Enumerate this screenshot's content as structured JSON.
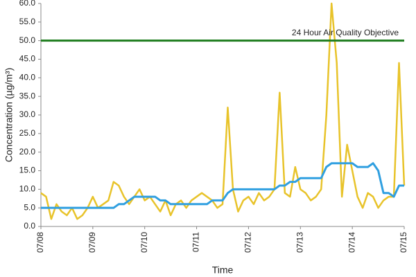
{
  "chart_data": {
    "type": "line",
    "x_label": "Time",
    "y_label": "Concentration (µg/m³)",
    "x": [
      0,
      0.1,
      0.2,
      0.3,
      0.4,
      0.5,
      0.6,
      0.7,
      0.8,
      0.9,
      1,
      1.1,
      1.2,
      1.3,
      1.4,
      1.5,
      1.6,
      1.7,
      1.8,
      1.9,
      2,
      2.1,
      2.2,
      2.3,
      2.4,
      2.5,
      2.6,
      2.7,
      2.8,
      2.9,
      3,
      3.1,
      3.2,
      3.3,
      3.4,
      3.5,
      3.6,
      3.7,
      3.8,
      3.9,
      4,
      4.1,
      4.2,
      4.3,
      4.4,
      4.5,
      4.6,
      4.7,
      4.8,
      4.9,
      5,
      5.1,
      5.2,
      5.3,
      5.4,
      5.5,
      5.6,
      5.7,
      5.8,
      5.9,
      6,
      6.1,
      6.2,
      6.3,
      6.4,
      6.5,
      6.6,
      6.7,
      6.8,
      6.9,
      7
    ],
    "series": [
      {
        "color": "#e8c32a",
        "values": [
          9,
          8,
          2,
          6,
          4,
          3,
          5,
          2,
          3,
          5,
          8,
          5,
          6,
          7,
          12,
          11,
          8,
          6,
          8,
          10,
          7,
          8,
          6,
          4,
          7,
          3,
          6,
          7,
          5,
          7,
          8,
          9,
          8,
          7,
          5,
          6,
          32,
          10,
          4,
          7,
          8,
          6,
          9,
          7,
          8,
          10,
          36,
          9,
          8,
          16,
          10,
          9,
          7,
          8,
          10,
          30,
          60,
          44,
          8,
          22,
          15,
          8,
          5,
          9,
          8,
          5,
          7,
          8,
          8,
          44,
          11
        ]
      },
      {
        "color": "#2f9fe0",
        "values": [
          5,
          5,
          5,
          5,
          5,
          5,
          5,
          5,
          5,
          5,
          5,
          5,
          5,
          5,
          5,
          6,
          6,
          7,
          8,
          8,
          8,
          8,
          8,
          7,
          7,
          6,
          6,
          6,
          6,
          6,
          6,
          6,
          6,
          7,
          7,
          7,
          9,
          10,
          10,
          10,
          10,
          10,
          10,
          10,
          10,
          10,
          11,
          11,
          12,
          12,
          13,
          13,
          13,
          13,
          13,
          16,
          17,
          17,
          17,
          17,
          17,
          16,
          16,
          16,
          17,
          15,
          9,
          9,
          8,
          11,
          11
        ]
      }
    ],
    "objective": {
      "value": 50,
      "label": "24 Hour Air Quality Objective",
      "color": "#1e7d1e"
    },
    "xlim": [
      0,
      7
    ],
    "xticks": [
      {
        "value": 0,
        "label": "07/08"
      },
      {
        "value": 1,
        "label": "07/09"
      },
      {
        "value": 2,
        "label": "07/10"
      },
      {
        "value": 3,
        "label": "07/11"
      },
      {
        "value": 4,
        "label": "07/12"
      },
      {
        "value": 5,
        "label": "07/13"
      },
      {
        "value": 6,
        "label": "07/14"
      },
      {
        "value": 7,
        "label": "07/15"
      }
    ],
    "ylim": [
      0,
      60
    ],
    "yticks": [
      {
        "value": 0,
        "label": "0.0"
      },
      {
        "value": 5,
        "label": "5.0"
      },
      {
        "value": 10,
        "label": "10.0"
      },
      {
        "value": 15,
        "label": "15.0"
      },
      {
        "value": 20,
        "label": "20.0"
      },
      {
        "value": 25,
        "label": "25.0"
      },
      {
        "value": 30,
        "label": "30.0"
      },
      {
        "value": 35,
        "label": "35.0"
      },
      {
        "value": 40,
        "label": "40.0"
      },
      {
        "value": 45,
        "label": "45.0"
      },
      {
        "value": 50,
        "label": "50.0"
      },
      {
        "value": 55,
        "label": "55.0"
      },
      {
        "value": 60,
        "label": "60.0"
      }
    ]
  }
}
